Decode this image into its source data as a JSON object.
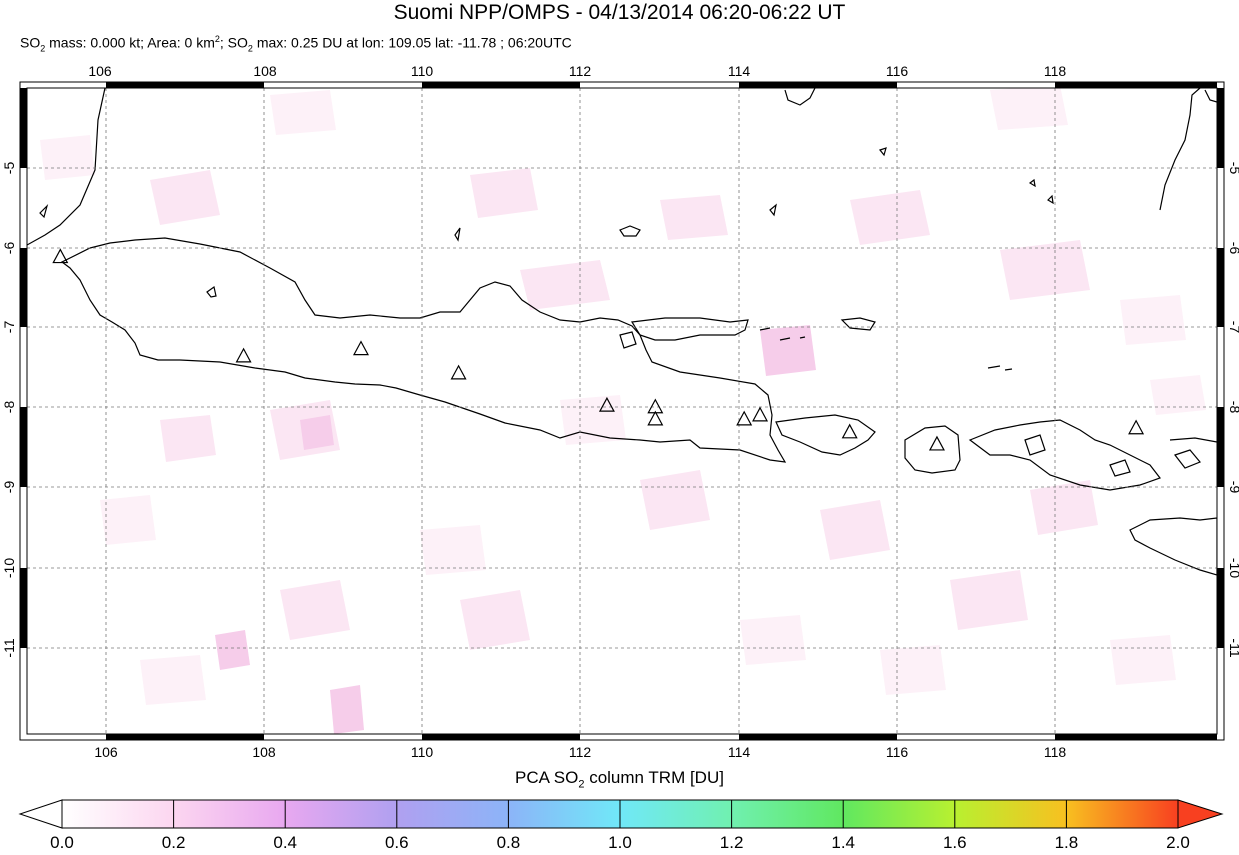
{
  "header": {
    "title": "Suomi NPP/OMPS - 04/13/2014 06:20-06:22 UT",
    "sub_p1": "SO",
    "sub_p2": " mass: 0.000 kt; Area: 0 km",
    "sub_p3": "; SO",
    "sub_p4": " max: 0.25 DU at lon: 109.05 lat: -11.78 ; 06:20UTC",
    "sub_2": "2",
    "sup_2": "2"
  },
  "map": {
    "lon_range": [
      105.0,
      120.0
    ],
    "lat_range": [
      -12.0,
      -4.0
    ],
    "lon_ticks": [
      "106",
      "108",
      "110",
      "112",
      "114",
      "116",
      "118"
    ],
    "lat_ticks": [
      "-5",
      "-6",
      "-7",
      "-8",
      "-9",
      "-10",
      "-11"
    ],
    "volcanoes": [
      [
        105.42,
        -6.1
      ],
      [
        107.73,
        -7.33
      ],
      [
        109.21,
        -7.24
      ],
      [
        110.44,
        -7.54
      ],
      [
        112.31,
        -7.94
      ],
      [
        112.92,
        -7.96
      ],
      [
        112.92,
        -8.11
      ],
      [
        114.04,
        -8.11
      ],
      [
        114.24,
        -8.06
      ],
      [
        115.37,
        -8.27
      ],
      [
        116.47,
        -8.42
      ],
      [
        118.98,
        -8.22
      ]
    ],
    "grid_style": "dashed"
  },
  "colorbar": {
    "title_p1": "PCA SO",
    "title_sub": "2",
    "title_p2": " column TRM [DU]",
    "labels": [
      "0.0",
      "0.2",
      "0.4",
      "0.6",
      "0.8",
      "1.0",
      "1.2",
      "1.4",
      "1.6",
      "1.8",
      "2.0"
    ],
    "range": [
      0.0,
      2.0
    ],
    "colors": [
      "#ffffff",
      "#fcd6f0",
      "#e0a0f0",
      "#a0a0f0",
      "#70c8f8",
      "#70f0f0",
      "#70f0a0",
      "#60e050",
      "#d8f020",
      "#f8c020",
      "#f84020"
    ]
  }
}
